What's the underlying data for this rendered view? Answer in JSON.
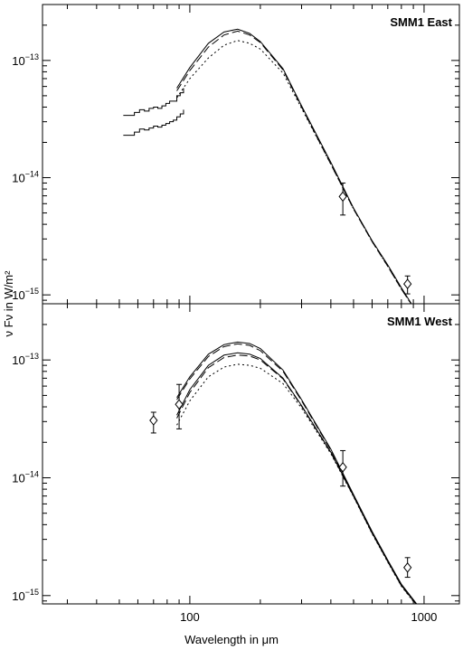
{
  "chart_data": [
    {
      "type": "line",
      "annotation": "SMM1 East",
      "xscale": "log",
      "yscale": "log",
      "xlim": [
        23.5,
        1415
      ],
      "ylim": [
        8.4e-16,
        3e-13
      ],
      "yticks": [
        {
          "value": 1e-13,
          "label": "10−13"
        },
        {
          "value": 1e-14,
          "label": "10−14"
        },
        {
          "value": 1e-15,
          "label": "10−15"
        }
      ],
      "series": [
        {
          "style": "solid",
          "color": "#000000",
          "x": [
            88,
            100,
            120,
            140,
            160,
            180,
            200,
            250,
            300,
            400,
            500,
            600,
            700,
            800,
            880
          ],
          "values": [
            5.8e-14,
            8.7e-14,
            1.4e-13,
            1.75e-13,
            1.85e-13,
            1.7e-13,
            1.45e-13,
            8.5e-14,
            4.1e-14,
            1.35e-14,
            5.5e-15,
            2.9e-15,
            1.8e-15,
            1.15e-15,
            8.5e-16
          ]
        },
        {
          "style": "dashed",
          "color": "#000000",
          "x": [
            88,
            100,
            120,
            140,
            160,
            180,
            200,
            250,
            300,
            400,
            500,
            600,
            700,
            800,
            880
          ],
          "values": [
            5.5e-14,
            8.2e-14,
            1.3e-13,
            1.65e-13,
            1.78e-13,
            1.65e-13,
            1.42e-13,
            8.3e-14,
            4e-14,
            1.3e-14,
            5.4e-15,
            2.85e-15,
            1.75e-15,
            1.12e-15,
            8.4e-16
          ]
        },
        {
          "style": "dotted",
          "color": "#000000",
          "x": [
            88,
            100,
            120,
            140,
            160,
            180,
            200,
            250,
            300,
            400,
            500,
            600,
            700,
            800,
            880
          ],
          "values": [
            4.8e-14,
            7e-14,
            1.05e-13,
            1.35e-13,
            1.48e-13,
            1.4e-13,
            1.25e-13,
            7.8e-14,
            3.9e-14,
            1.3e-14,
            5.4e-15,
            2.85e-15,
            1.75e-15,
            1.12e-15,
            8.4e-16
          ]
        },
        {
          "style": "steps",
          "color": "#000000",
          "x": [
            52,
            55,
            58,
            61,
            64,
            67,
            70,
            73,
            76,
            79,
            82,
            85,
            88,
            91,
            94
          ],
          "values": [
            3.4e-14,
            3.4e-14,
            3.6e-14,
            3.8e-14,
            3.7e-14,
            3.9e-14,
            4e-14,
            3.9e-14,
            4.1e-14,
            4.3e-14,
            4.5e-14,
            4.5e-14,
            5e-14,
            5.3e-14,
            5.8e-14
          ]
        },
        {
          "style": "steps",
          "color": "#000000",
          "x": [
            52,
            55,
            58,
            61,
            64,
            67,
            70,
            73,
            76,
            79,
            82,
            85,
            88,
            91,
            94
          ],
          "values": [
            2.3e-14,
            2.3e-14,
            2.45e-14,
            2.6e-14,
            2.55e-14,
            2.65e-14,
            2.75e-14,
            2.7e-14,
            2.8e-14,
            2.9e-14,
            3e-14,
            3.1e-14,
            3.3e-14,
            3.5e-14,
            3.8e-14
          ]
        },
        {
          "style": "diamond",
          "color": "#000000",
          "x": [
            450,
            850
          ],
          "values": [
            6.9e-15,
            1.24e-15
          ],
          "err_low": [
            4.8e-15,
            1.02e-15
          ],
          "err_high": [
            9e-15,
            1.45e-15
          ]
        }
      ]
    },
    {
      "type": "line",
      "annotation": "SMM1 West",
      "xscale": "log",
      "yscale": "log",
      "xlabel": "Wavelength in μm",
      "ylabel": "ν Fν in W/m²",
      "xlim": [
        23.5,
        1415
      ],
      "ylim": [
        8.5e-16,
        3e-13
      ],
      "xticks": [
        100,
        1000
      ],
      "yticks": [
        {
          "value": 1e-13,
          "label": "10−13"
        },
        {
          "value": 1e-14,
          "label": "10−14"
        },
        {
          "value": 1e-15,
          "label": "10−15"
        }
      ],
      "series": [
        {
          "style": "solid",
          "color": "#000000",
          "x": [
            88,
            100,
            120,
            140,
            160,
            180,
            200,
            250,
            300,
            400,
            500,
            600,
            700,
            800,
            930
          ],
          "values": [
            4.8e-14,
            7.2e-14,
            1.12e-13,
            1.35e-13,
            1.42e-13,
            1.38e-13,
            1.25e-13,
            8.2e-14,
            4.6e-14,
            1.75e-14,
            7.2e-15,
            3.5e-15,
            2e-15,
            1.25e-15,
            8.5e-16
          ]
        },
        {
          "style": "dashed",
          "color": "#000000",
          "x": [
            88,
            100,
            120,
            140,
            160,
            180,
            200,
            250,
            300,
            400,
            500,
            600,
            700,
            800,
            930
          ],
          "values": [
            4.6e-14,
            6.9e-14,
            1.07e-13,
            1.3e-13,
            1.37e-13,
            1.33e-13,
            1.2e-13,
            8e-14,
            4.5e-14,
            1.72e-14,
            7.1e-15,
            3.45e-15,
            1.97e-15,
            1.23e-15,
            8.4e-16
          ]
        },
        {
          "style": "solid",
          "color": "#000000",
          "x": [
            88,
            100,
            120,
            140,
            160,
            180,
            200,
            250,
            300,
            400,
            500,
            600,
            700,
            800,
            930
          ],
          "values": [
            3.4e-14,
            5.6e-14,
            9e-14,
            1.1e-13,
            1.15e-13,
            1.12e-13,
            1.03e-13,
            7e-14,
            4.1e-14,
            1.65e-14,
            7e-15,
            3.4e-15,
            1.95e-15,
            1.22e-15,
            8.4e-16
          ]
        },
        {
          "style": "dashed",
          "color": "#000000",
          "x": [
            88,
            100,
            120,
            140,
            160,
            180,
            200,
            250,
            300,
            400,
            500,
            600,
            700,
            800,
            930
          ],
          "values": [
            3.2e-14,
            5.3e-14,
            8.6e-14,
            1.05e-13,
            1.1e-13,
            1.08e-13,
            1e-13,
            6.9e-14,
            4.05e-14,
            1.63e-14,
            6.95e-15,
            3.38e-15,
            1.94e-15,
            1.21e-15,
            8.3e-16
          ]
        },
        {
          "style": "dotted",
          "color": "#000000",
          "x": [
            88,
            100,
            120,
            140,
            160,
            180,
            200,
            250,
            300,
            400,
            500,
            600,
            700,
            800,
            930
          ],
          "values": [
            2.8e-14,
            4.5e-14,
            7.2e-14,
            8.7e-14,
            9.2e-14,
            9e-14,
            8.5e-14,
            6.3e-14,
            3.9e-14,
            1.6e-14,
            6.9e-15,
            3.35e-15,
            1.92e-15,
            1.2e-15,
            8.2e-16
          ]
        },
        {
          "style": "diamond",
          "color": "#000000",
          "x": [
            70,
            90,
            450,
            850
          ],
          "values": [
            3.07e-14,
            4.2e-14,
            1.23e-14,
            1.73e-15
          ],
          "err_low": [
            2.4e-14,
            2.6e-14,
            8.5e-15,
            1.43e-15
          ],
          "err_high": [
            3.6e-14,
            6.2e-14,
            1.7e-14,
            2.1e-15
          ]
        }
      ]
    }
  ]
}
